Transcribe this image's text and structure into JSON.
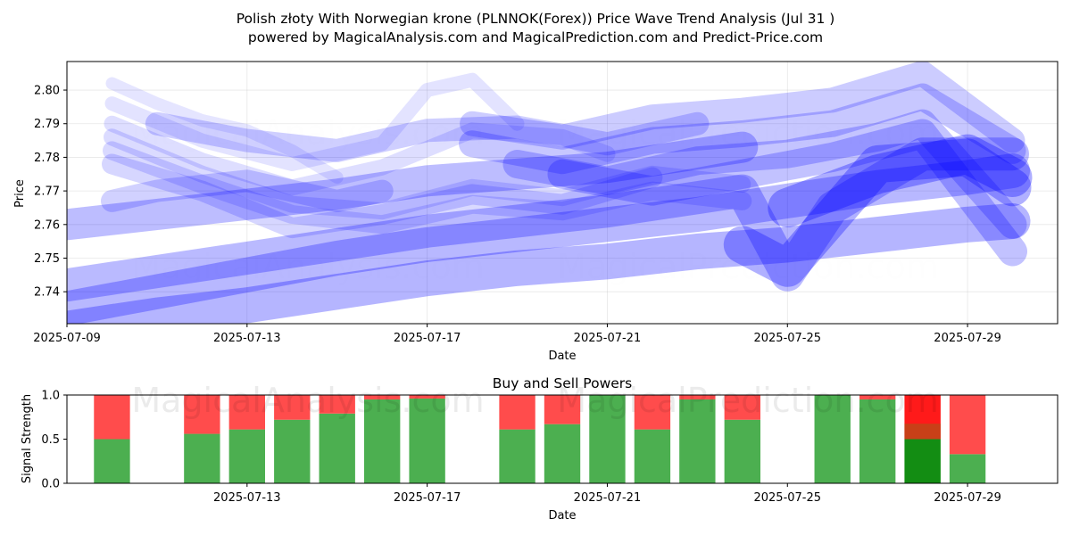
{
  "title_line1": "Polish złoty With Norwegian krone (PLNNOK(Forex)) Price Wave Trend Analysis (Jul 31 )",
  "title_line2": "powered by MagicalAnalysis.com and MagicalPrediction.com and Predict-Price.com",
  "watermarks": [
    "MagicalAnalysis.com",
    "MagicalPrediction.com"
  ],
  "chart_data": [
    {
      "type": "line",
      "xlabel": "Date",
      "ylabel": "Price",
      "x_ticks": [
        "2025-07-09",
        "2025-07-13",
        "2025-07-17",
        "2025-07-21",
        "2025-07-25",
        "2025-07-29"
      ],
      "y_ticks": [
        2.74,
        2.75,
        2.76,
        2.77,
        2.78,
        2.79,
        2.8
      ],
      "xlim": [
        "2025-07-09",
        "2025-07-31"
      ],
      "ylim": [
        2.7305,
        2.8085
      ],
      "line_color": "#0000ff",
      "series": [
        {
          "x": [
            "2025-07-10",
            "2025-07-11",
            "2025-07-12",
            "2025-07-13",
            "2025-07-14",
            "2025-07-15"
          ],
          "y": [
            2.802,
            2.796,
            2.791,
            2.788,
            2.782,
            2.774
          ]
        },
        {
          "x": [
            "2025-07-10",
            "2025-07-12",
            "2025-07-14",
            "2025-07-16",
            "2025-07-17",
            "2025-07-18",
            "2025-07-19"
          ],
          "y": [
            2.796,
            2.785,
            2.778,
            2.784,
            2.8,
            2.803,
            2.79
          ]
        },
        {
          "x": [
            "2025-07-10",
            "2025-07-12",
            "2025-07-14",
            "2025-07-16",
            "2025-07-18",
            "2025-07-20",
            "2025-07-21"
          ],
          "y": [
            2.79,
            2.779,
            2.771,
            2.777,
            2.788,
            2.786,
            2.781
          ]
        },
        {
          "x": [
            "2025-07-10",
            "2025-07-12",
            "2025-07-14",
            "2025-07-16",
            "2025-07-18",
            "2025-07-20",
            "2025-07-22",
            "2025-07-24"
          ],
          "y": [
            2.786,
            2.775,
            2.766,
            2.764,
            2.771,
            2.768,
            2.775,
            2.772
          ]
        },
        {
          "x": [
            "2025-07-10",
            "2025-07-12",
            "2025-07-14",
            "2025-07-16",
            "2025-07-18",
            "2025-07-20",
            "2025-07-22",
            "2025-07-24"
          ],
          "y": [
            2.782,
            2.772,
            2.763,
            2.76,
            2.766,
            2.764,
            2.77,
            2.767
          ]
        },
        {
          "x": [
            "2025-07-10",
            "2025-07-12",
            "2025-07-14",
            "2025-07-16",
            "2025-07-18",
            "2025-07-20",
            "2025-07-22"
          ],
          "y": [
            2.778,
            2.77,
            2.759,
            2.763,
            2.769,
            2.766,
            2.774
          ]
        },
        {
          "x": [
            "2025-07-10",
            "2025-07-11",
            "2025-07-13",
            "2025-07-15",
            "2025-07-16"
          ],
          "y": [
            2.767,
            2.77,
            2.773,
            2.767,
            2.77
          ]
        },
        {
          "x": [
            "2025-07-11",
            "2025-07-13",
            "2025-07-15",
            "2025-07-17",
            "2025-07-19",
            "2025-07-21",
            "2025-07-23"
          ],
          "y": [
            2.79,
            2.785,
            2.782,
            2.788,
            2.789,
            2.784,
            2.79
          ]
        },
        {
          "x": [
            "2025-07-18",
            "2025-07-20",
            "2025-07-22",
            "2025-07-24",
            "2025-07-26",
            "2025-07-28",
            "2025-07-30"
          ],
          "y": [
            2.79,
            2.786,
            2.792,
            2.794,
            2.797,
            2.805,
            2.785
          ]
        },
        {
          "x": [
            "2025-07-18",
            "2025-07-20",
            "2025-07-22",
            "2025-07-24",
            "2025-07-26",
            "2025-07-28",
            "2025-07-30"
          ],
          "y": [
            2.784,
            2.779,
            2.785,
            2.787,
            2.79,
            2.798,
            2.782
          ]
        },
        {
          "x": [
            "2025-07-19",
            "2025-07-21",
            "2025-07-23",
            "2025-07-25",
            "2025-07-27",
            "2025-07-28",
            "2025-07-30"
          ],
          "y": [
            2.778,
            2.773,
            2.779,
            2.781,
            2.786,
            2.79,
            2.76
          ]
        },
        {
          "x": [
            "2025-07-20",
            "2025-07-22",
            "2025-07-24",
            "2025-07-26",
            "2025-07-28",
            "2025-07-30"
          ],
          "y": [
            2.775,
            2.77,
            2.775,
            2.78,
            2.787,
            2.752
          ]
        },
        {
          "x": [
            "2025-07-09",
            "2025-07-11",
            "2025-07-13",
            "2025-07-15",
            "2025-07-17",
            "2025-07-19",
            "2025-07-21",
            "2025-07-23",
            "2025-07-24"
          ],
          "y": [
            2.76,
            2.763,
            2.766,
            2.769,
            2.773,
            2.775,
            2.777,
            2.781,
            2.783
          ]
        },
        {
          "x": [
            "2025-07-09",
            "2025-07-11",
            "2025-07-13",
            "2025-07-15",
            "2025-07-17",
            "2025-07-19",
            "2025-07-21",
            "2025-07-23",
            "2025-07-24",
            "2025-07-25",
            "2025-07-26",
            "2025-07-28",
            "2025-07-30"
          ],
          "y": [
            2.742,
            2.746,
            2.75,
            2.754,
            2.758,
            2.761,
            2.764,
            2.768,
            2.77,
            2.745,
            2.765,
            2.781,
            2.781
          ]
        },
        {
          "x": [
            "2025-07-09",
            "2025-07-11",
            "2025-07-13",
            "2025-07-15",
            "2025-07-17",
            "2025-07-19",
            "2025-07-21",
            "2025-07-23",
            "2025-07-25",
            "2025-07-27",
            "2025-07-29",
            "2025-07-30"
          ],
          "y": [
            2.735,
            2.74,
            2.745,
            2.75,
            2.754,
            2.757,
            2.76,
            2.763,
            2.767,
            2.771,
            2.774,
            2.776
          ]
        },
        {
          "x": [
            "2025-07-09",
            "2025-07-11",
            "2025-07-13",
            "2025-07-15",
            "2025-07-17",
            "2025-07-19",
            "2025-07-21",
            "2025-07-23",
            "2025-07-25",
            "2025-07-27",
            "2025-07-29",
            "2025-07-30"
          ],
          "y": [
            2.729,
            2.733,
            2.736,
            2.74,
            2.744,
            2.747,
            2.749,
            2.752,
            2.754,
            2.757,
            2.76,
            2.761
          ]
        },
        {
          "x": [
            "2025-07-24",
            "2025-07-25",
            "2025-07-27",
            "2025-07-29",
            "2025-07-30"
          ],
          "y": [
            2.754,
            2.747,
            2.778,
            2.78,
            2.771
          ]
        },
        {
          "x": [
            "2025-07-25",
            "2025-07-27",
            "2025-07-29",
            "2025-07-30"
          ],
          "y": [
            2.765,
            2.775,
            2.781,
            2.774
          ]
        }
      ]
    },
    {
      "type": "bar",
      "title": "Buy and Sell Powers",
      "xlabel": "Date",
      "ylabel": "Signal Strength",
      "x_ticks": [
        "2025-07-13",
        "2025-07-17",
        "2025-07-21",
        "2025-07-25",
        "2025-07-29"
      ],
      "y_ticks": [
        0.0,
        0.5,
        1.0
      ],
      "ylim": [
        0,
        1
      ],
      "xlim": [
        "2025-07-09",
        "2025-07-31"
      ],
      "buy_color": "#4caf50",
      "sell_color": "#ff4c4c",
      "categories": [
        "2025-07-10",
        "2025-07-12",
        "2025-07-13",
        "2025-07-14",
        "2025-07-15",
        "2025-07-16",
        "2025-07-17",
        "2025-07-19",
        "2025-07-20",
        "2025-07-21",
        "2025-07-22",
        "2025-07-23",
        "2025-07-24",
        "2025-07-26",
        "2025-07-27",
        "2025-07-28",
        "2025-07-29"
      ],
      "series": [
        {
          "name": "Buy",
          "values": [
            0.5,
            0.56,
            0.61,
            0.72,
            0.79,
            0.95,
            0.96,
            0.61,
            0.67,
            1.0,
            0.61,
            0.95,
            0.72,
            1.0,
            0.95,
            0.5,
            0.33
          ]
        },
        {
          "name": "Sell",
          "values": [
            0.5,
            0.44,
            0.39,
            0.28,
            0.21,
            0.05,
            0.04,
            0.39,
            0.33,
            0.0,
            0.39,
            0.05,
            0.28,
            0.0,
            0.05,
            0.5,
            0.67
          ]
        }
      ]
    }
  ]
}
